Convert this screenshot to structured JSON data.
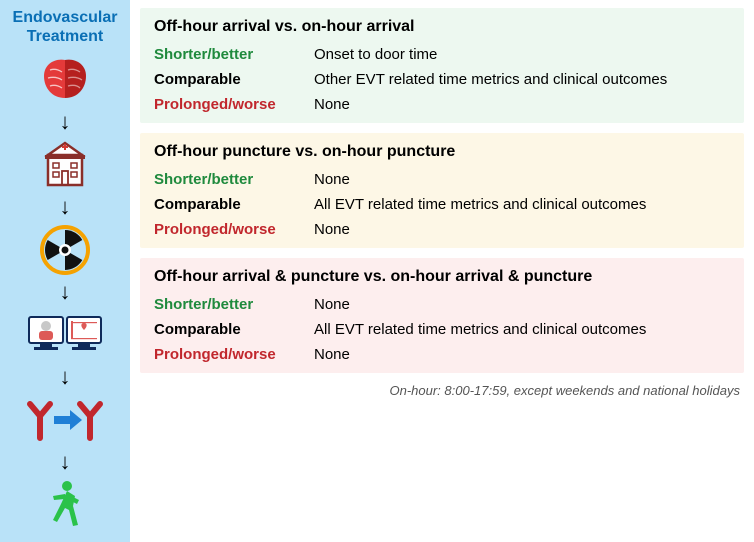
{
  "left": {
    "title_line1": "Endovascular",
    "title_line2": "Treatment",
    "title_color": "#0a6fb5",
    "title_fontsize": 16,
    "bg": "#b9e2f8"
  },
  "panels": [
    {
      "bg": "#edf8f0",
      "title": "Off-hour arrival vs. on-hour arrival",
      "rows": [
        {
          "label": "Shorter/better",
          "color": "#1f8a3d",
          "value": "Onset to door time"
        },
        {
          "label": "Comparable",
          "color": "#000000",
          "value": "Other EVT related time metrics and clinical outcomes"
        },
        {
          "label": "Prolonged/worse",
          "color": "#c1272d",
          "value": "None"
        }
      ]
    },
    {
      "bg": "#fdf7e6",
      "title": "Off-hour puncture vs. on-hour puncture",
      "rows": [
        {
          "label": "Shorter/better",
          "color": "#1f8a3d",
          "value": "None"
        },
        {
          "label": "Comparable",
          "color": "#000000",
          "value": "All EVT related time metrics and clinical outcomes"
        },
        {
          "label": "Prolonged/worse",
          "color": "#c1272d",
          "value": "None"
        }
      ]
    },
    {
      "bg": "#fdeeee",
      "title": "Off-hour arrival & puncture vs. on-hour arrival & puncture",
      "rows": [
        {
          "label": "Shorter/better",
          "color": "#1f8a3d",
          "value": "None"
        },
        {
          "label": "Comparable",
          "color": "#000000",
          "value": "All EVT related time metrics and clinical outcomes"
        },
        {
          "label": "Prolonged/worse",
          "color": "#c1272d",
          "value": "None"
        }
      ]
    }
  ],
  "footnote": "On-hour: 8:00-17:59, except weekends and national holidays",
  "style": {
    "panel_title_fontsize": 16,
    "row_fontsize": 15,
    "footnote_fontsize": 13,
    "footnote_color": "#555555"
  },
  "icons": {
    "brain_fill": "#e43a3a",
    "brain_dark": "#b5201f",
    "hospital_stroke": "#8a2f2a",
    "hospital_cross": "#d13b35",
    "radiation_ring": "#f5a201",
    "radiation_blade": "#111111",
    "monitor_stroke": "#0f2a5a",
    "monitor_accent": "#dd5a57",
    "vessel_color": "#c1272d",
    "vessel_arrow": "#1f7fd6",
    "walker_color": "#2bc24a"
  }
}
